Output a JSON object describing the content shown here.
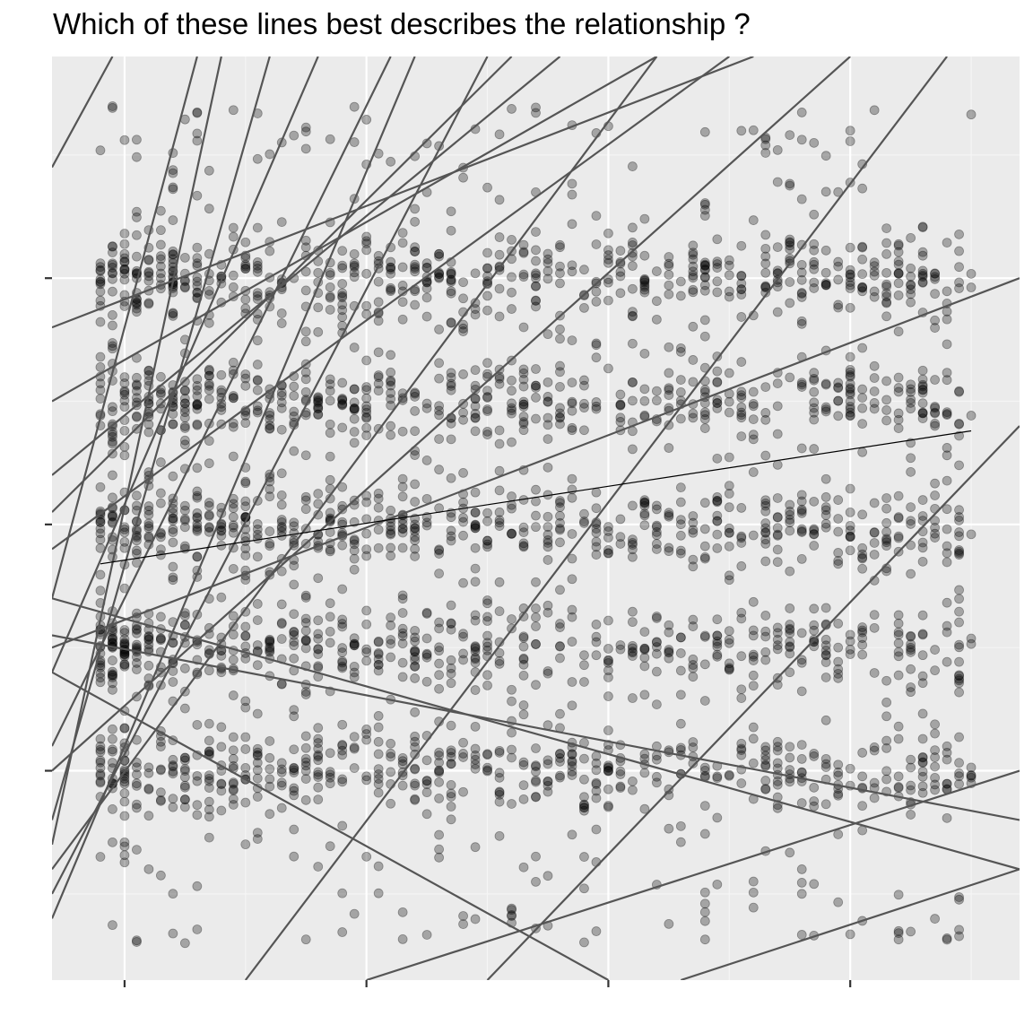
{
  "colors": {
    "panel_background": "#ebebeb",
    "grid_major": "#ffffff",
    "grid_minor": "#f5f5f5",
    "tick": "#333333",
    "point": "#000000",
    "candidate_line": "#555555",
    "highlighted_line": "#000000"
  },
  "chart_data": {
    "type": "scatter",
    "title": "Which of these lines best describes the relationship ?",
    "xlabel": "",
    "ylabel": "",
    "x_tick_labels": [],
    "y_tick_labels": [],
    "xlim": [
      -0.3,
      3.7
    ],
    "ylim": [
      -1.85,
      1.9
    ],
    "x_ticks": [
      0,
      1,
      2,
      3
    ],
    "y_ticks": [
      -1,
      0,
      1
    ],
    "grid": true,
    "legend": "none",
    "point_opacity": 0.3,
    "point_count_shown_approx": 3000,
    "point_description": "Points in x from about -0.1 to 3.5 and y from about -1.7 to 1.7, denser in five horizontal bands near y = 1.0, 0.5, 0.0, -0.5 and -1.0, with sparse points between bands.",
    "point_bands_y": [
      1.0,
      0.5,
      0.0,
      -0.5,
      -1.0
    ],
    "x_range_points": [
      -0.1,
      3.5
    ],
    "y_range_points": [
      -1.7,
      1.7
    ],
    "highlighted_line": {
      "x": [
        -0.1,
        3.5
      ],
      "y": [
        -0.16,
        0.38
      ]
    },
    "candidate_lines": [
      {
        "x": [
          -0.3,
          1.1
        ],
        "y": [
          -0.9,
          1.9
        ]
      },
      {
        "x": [
          -0.3,
          0.3
        ],
        "y": [
          -0.3,
          1.9
        ]
      },
      {
        "x": [
          -0.3,
          -0.05
        ],
        "y": [
          1.45,
          1.9
        ]
      },
      {
        "x": [
          -0.3,
          0.4
        ],
        "y": [
          -1.3,
          1.9
        ]
      },
      {
        "x": [
          -0.3,
          0.6
        ],
        "y": [
          -1.2,
          1.9
        ]
      },
      {
        "x": [
          -0.3,
          1.2
        ],
        "y": [
          -1.6,
          1.9
        ]
      },
      {
        "x": [
          -0.3,
          1.5
        ],
        "y": [
          -1.5,
          1.9
        ]
      },
      {
        "x": [
          -0.3,
          2.2
        ],
        "y": [
          -1.4,
          1.9
        ]
      },
      {
        "x": [
          -0.3,
          3.0
        ],
        "y": [
          -1.0,
          1.9
        ]
      },
      {
        "x": [
          0.5,
          3.4
        ],
        "y": [
          -1.85,
          1.9
        ]
      },
      {
        "x": [
          -0.3,
          2.6
        ],
        "y": [
          0.8,
          1.9
        ]
      },
      {
        "x": [
          -0.3,
          2.2
        ],
        "y": [
          0.5,
          1.9
        ]
      },
      {
        "x": [
          -0.3,
          1.8
        ],
        "y": [
          0.2,
          1.9
        ]
      },
      {
        "x": [
          -0.3,
          3.7
        ],
        "y": [
          -0.5,
          1.0
        ]
      },
      {
        "x": [
          -0.3,
          3.7
        ],
        "y": [
          -0.3,
          -1.4
        ]
      },
      {
        "x": [
          -0.3,
          3.7
        ],
        "y": [
          -0.45,
          -1.2
        ]
      },
      {
        "x": [
          -0.3,
          2.0
        ],
        "y": [
          -0.6,
          -1.85
        ]
      },
      {
        "x": [
          1.0,
          3.7
        ],
        "y": [
          -1.85,
          -1.0
        ]
      },
      {
        "x": [
          2.3,
          3.7
        ],
        "y": [
          -1.85,
          -1.4
        ]
      },
      {
        "x": [
          1.5,
          3.7
        ],
        "y": [
          -1.85,
          0.4
        ]
      },
      {
        "x": [
          -0.3,
          1.6
        ],
        "y": [
          0.05,
          1.9
        ]
      },
      {
        "x": [
          -0.3,
          0.8
        ],
        "y": [
          -0.6,
          1.9
        ]
      },
      {
        "x": [
          -0.3,
          2.5
        ],
        "y": [
          -0.1,
          1.9
        ]
      }
    ]
  }
}
